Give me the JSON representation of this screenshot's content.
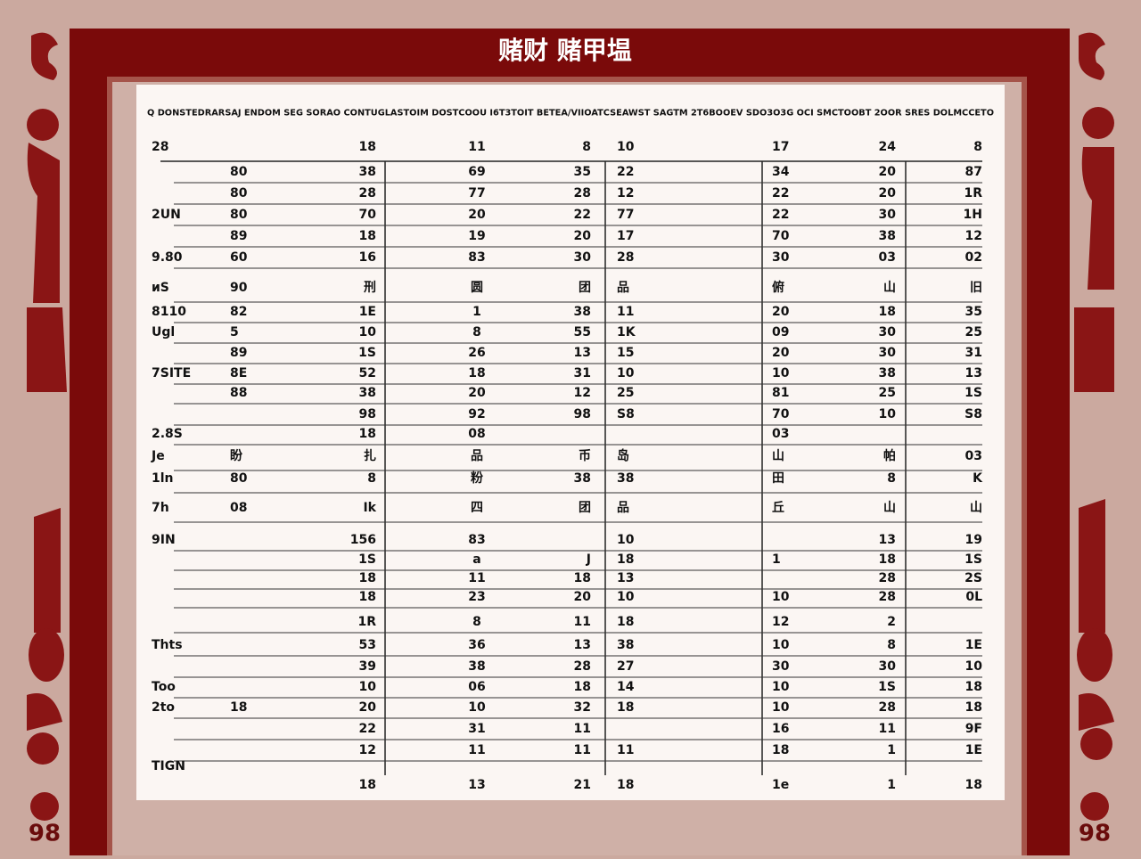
{
  "header": {
    "title": "赌财 赌甲塭",
    "subtitle": "Q DONSTEDRARSAJ ENDOM SEG SORAO CONTUGLASTOIM DOSTCOOU I6T3TOIT BETEA/VIIOATCSEAWST SAGTM 2T6BOOEV SDO3O3G OCI SMCTOOBT 2OOR SRES DOLMCCETO"
  },
  "table": {
    "columns": [
      "28",
      "18",
      "11",
      "8",
      "10",
      "17",
      "24",
      "8"
    ],
    "rows": [
      [
        null,
        "80",
        "38",
        "69",
        "35",
        "22",
        "34",
        "20",
        "87"
      ],
      [
        null,
        "80",
        "28",
        "77",
        "28",
        "12",
        "22",
        "20",
        "1R"
      ],
      [
        "2UN",
        "80",
        "70",
        "20",
        "22",
        "77",
        "22",
        "30",
        "1H"
      ],
      [
        null,
        "89",
        "18",
        "19",
        "20",
        "17",
        "70",
        "38",
        "12"
      ],
      [
        "9.80",
        "60",
        "16",
        "83",
        "30",
        "28",
        "30",
        "03",
        "02"
      ],
      [
        "ᴎS",
        "90",
        "刑",
        "圆",
        "团",
        "品",
        "俯",
        "山",
        "旧"
      ],
      [
        "8110",
        "82",
        "1E",
        "1",
        "38",
        "11",
        "20",
        "18",
        "35"
      ],
      [
        "Ugl",
        "5",
        "10",
        "8",
        "55",
        "1K",
        "09",
        "30",
        "25"
      ],
      [
        null,
        "89",
        "1S",
        "26",
        "13",
        "15",
        "20",
        "30",
        "31"
      ],
      [
        "7SITE",
        "8E",
        "52",
        "18",
        "31",
        "10",
        "10",
        "38",
        "13"
      ],
      [
        null,
        "88",
        "38",
        "20",
        "12",
        "25",
        "81",
        "25",
        "1S"
      ],
      [
        null,
        null,
        "98",
        "92",
        "98",
        "S8",
        "70",
        "10",
        "S8"
      ],
      [
        "2.8S",
        null,
        "18",
        "08",
        null,
        null,
        "03",
        null,
        null
      ],
      [
        "Je",
        "盼",
        "扎",
        "品",
        "币",
        "岛",
        "山",
        "帕",
        "03"
      ],
      [
        "1ln",
        "80",
        "8",
        "粉",
        "38",
        "38",
        "田",
        "8",
        "K"
      ],
      [
        "7h",
        "08",
        "Ik",
        "四",
        "团",
        "品",
        "丘",
        "山",
        "山"
      ],
      [
        "9IN",
        null,
        "156",
        "83",
        null,
        "10",
        null,
        "13",
        "19"
      ],
      [
        null,
        null,
        "1S",
        "a",
        "J",
        "18",
        "1",
        "18",
        "1S"
      ],
      [
        null,
        null,
        "18",
        "11",
        "18",
        "13",
        null,
        "28",
        "2S"
      ],
      [
        null,
        null,
        "18",
        "23",
        "20",
        "10",
        "10",
        "28",
        "0L"
      ],
      [
        null,
        null,
        "1R",
        "8",
        "11",
        "18",
        "12",
        "2",
        null
      ],
      [
        "Thts",
        null,
        "53",
        "36",
        "13",
        "38",
        "10",
        "8",
        "1E"
      ],
      [
        null,
        null,
        "39",
        "38",
        "28",
        "27",
        "30",
        "30",
        "10"
      ],
      [
        "Too",
        null,
        "10",
        "06",
        "18",
        "14",
        "10",
        "1S",
        "18"
      ],
      [
        "2to",
        "18",
        "20",
        "10",
        "32",
        "18",
        "10",
        "28",
        "18"
      ],
      [
        null,
        null,
        "22",
        "31",
        "11",
        null,
        "16",
        "11",
        "9F"
      ],
      [
        null,
        null,
        "12",
        "11",
        "11",
        "11",
        "18",
        "1",
        "1E"
      ],
      [
        "TIGN",
        null,
        null,
        null,
        null,
        null,
        null,
        null,
        null
      ],
      [
        null,
        null,
        "18",
        "13",
        "21",
        "18",
        "1e",
        "1",
        "18"
      ]
    ]
  },
  "corner_labels": [
    "98",
    "98"
  ]
}
